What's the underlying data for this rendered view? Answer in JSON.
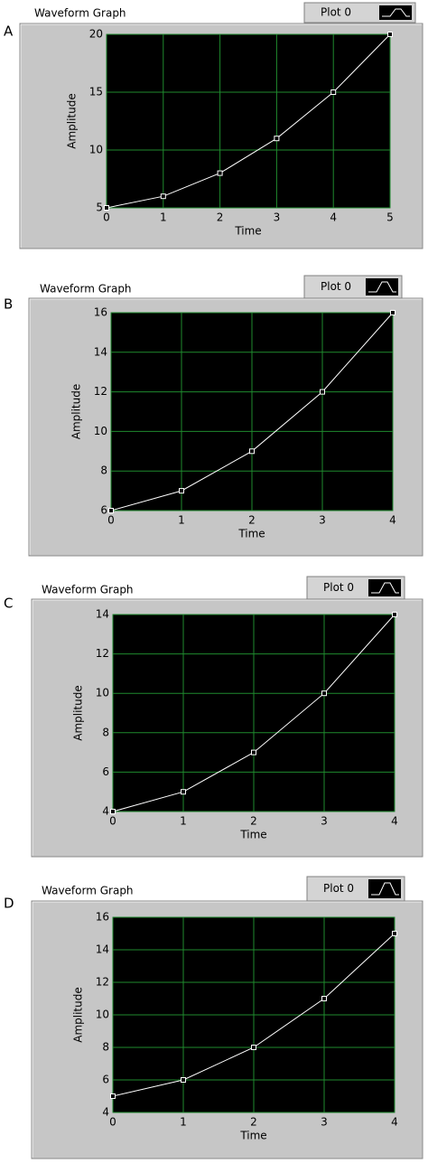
{
  "chart_data": [
    {
      "type": "line",
      "option": "A",
      "title": "Waveform Graph",
      "x_label": "Time",
      "y_label": "Amplitude",
      "x": [
        0,
        1,
        2,
        3,
        4,
        5
      ],
      "series": [
        {
          "name": "Plot 0",
          "color": "#ffffff",
          "values": [
            5,
            6,
            8,
            11,
            15,
            20
          ]
        }
      ],
      "xlim": [
        0,
        5
      ],
      "xticks": [
        0,
        1,
        2,
        3,
        4,
        5
      ],
      "ylim": [
        5,
        20
      ],
      "yticks": [
        5,
        10,
        15,
        20
      ],
      "grid": true
    },
    {
      "type": "line",
      "option": "B",
      "title": "Waveform Graph",
      "x_label": "Time",
      "y_label": "Amplitude",
      "x": [
        0,
        1,
        2,
        3,
        4
      ],
      "series": [
        {
          "name": "Plot 0",
          "color": "#ffffff",
          "values": [
            6,
            7,
            9,
            12,
            16
          ]
        }
      ],
      "xlim": [
        0,
        4
      ],
      "xticks": [
        0,
        1,
        2,
        3,
        4
      ],
      "ylim": [
        6,
        16
      ],
      "yticks": [
        6,
        8,
        10,
        12,
        14,
        16
      ],
      "grid": true
    },
    {
      "type": "line",
      "option": "C",
      "title": "Waveform Graph",
      "x_label": "Time",
      "y_label": "Amplitude",
      "x": [
        0,
        1,
        2,
        3,
        4
      ],
      "series": [
        {
          "name": "Plot 0",
          "color": "#ffffff",
          "values": [
            4,
            5,
            7,
            10,
            14
          ]
        }
      ],
      "xlim": [
        0,
        4
      ],
      "xticks": [
        0,
        1,
        2,
        3,
        4
      ],
      "ylim": [
        4,
        14
      ],
      "yticks": [
        4,
        6,
        8,
        10,
        12,
        14
      ],
      "grid": true
    },
    {
      "type": "line",
      "option": "D",
      "title": "Waveform Graph",
      "x_label": "Time",
      "y_label": "Amplitude",
      "x": [
        0,
        1,
        2,
        3,
        4
      ],
      "series": [
        {
          "name": "Plot 0",
          "color": "#ffffff",
          "values": [
            5,
            6,
            8,
            11,
            15
          ]
        }
      ],
      "xlim": [
        0,
        4
      ],
      "xticks": [
        0,
        1,
        2,
        3,
        4
      ],
      "ylim": [
        4,
        16
      ],
      "yticks": [
        4,
        6,
        8,
        10,
        12,
        14,
        16
      ],
      "grid": true
    }
  ]
}
